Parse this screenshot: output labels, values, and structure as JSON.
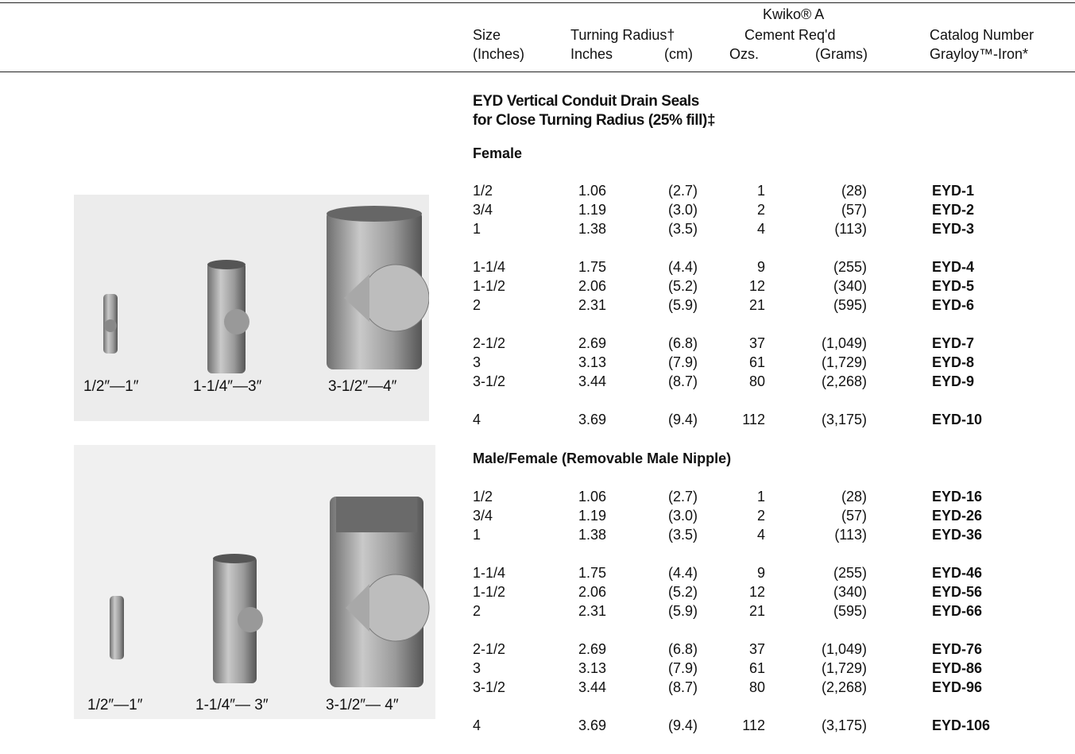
{
  "header": {
    "kwiko": "Kwiko® A",
    "size": "Size",
    "size_unit": "(Inches)",
    "turning_radius": "Turning Radius†",
    "turning_inches": "Inches",
    "turning_cm": "(cm)",
    "cement": "Cement Req'd",
    "cement_ozs": "Ozs.",
    "cement_grams": "(Grams)",
    "catalog": "Catalog Number",
    "catalog_material": "Grayloy™-Iron*"
  },
  "sections": [
    {
      "title": [
        "EYD Vertical Conduit Drain Seals",
        "for Close Turning Radius (25% fill)‡"
      ],
      "subtitle": "Female",
      "groups": [
        [
          [
            "1/2",
            "1.06",
            "(2.7)",
            "1",
            "(28)",
            "EYD-1"
          ],
          [
            "3/4",
            "1.19",
            "(3.0)",
            "2",
            "(57)",
            "EYD-2"
          ],
          [
            "1",
            "1.38",
            "(3.5)",
            "4",
            "(113)",
            "EYD-3"
          ]
        ],
        [
          [
            "1-1/4",
            "1.75",
            "(4.4)",
            "9",
            "(255)",
            "EYD-4"
          ],
          [
            "1-1/2",
            "2.06",
            "(5.2)",
            "12",
            "(340)",
            "EYD-5"
          ],
          [
            "2",
            "2.31",
            "(5.9)",
            "21",
            "(595)",
            "EYD-6"
          ]
        ],
        [
          [
            "2-1/2",
            "2.69",
            "(6.8)",
            "37",
            "(1,049)",
            "EYD-7"
          ],
          [
            "3",
            "3.13",
            "(7.9)",
            "61",
            "(1,729)",
            "EYD-8"
          ],
          [
            "3-1/2",
            "3.44",
            "(8.7)",
            "80",
            "(2,268)",
            "EYD-9"
          ]
        ],
        [
          [
            "4",
            "3.69",
            "(9.4)",
            "112",
            "(3,175)",
            "EYD-10"
          ]
        ]
      ]
    },
    {
      "subtitle": "Male/Female (Removable Male Nipple)",
      "groups": [
        [
          [
            "1/2",
            "1.06",
            "(2.7)",
            "1",
            "(28)",
            "EYD-16"
          ],
          [
            "3/4",
            "1.19",
            "(3.0)",
            "2",
            "(57)",
            "EYD-26"
          ],
          [
            "1",
            "1.38",
            "(3.5)",
            "4",
            "(113)",
            "EYD-36"
          ]
        ],
        [
          [
            "1-1/4",
            "1.75",
            "(4.4)",
            "9",
            "(255)",
            "EYD-46"
          ],
          [
            "1-1/2",
            "2.06",
            "(5.2)",
            "12",
            "(340)",
            "EYD-56"
          ],
          [
            "2",
            "2.31",
            "(5.9)",
            "21",
            "(595)",
            "EYD-66"
          ]
        ],
        [
          [
            "2-1/2",
            "2.69",
            "(6.8)",
            "37",
            "(1,049)",
            "EYD-76"
          ],
          [
            "3",
            "3.13",
            "(7.9)",
            "61",
            "(1,729)",
            "EYD-86"
          ],
          [
            "3-1/2",
            "3.44",
            "(8.7)",
            "80",
            "(2,268)",
            "EYD-96"
          ]
        ],
        [
          [
            "4",
            "3.69",
            "(9.4)",
            "112",
            "(3,175)",
            "EYD-106"
          ]
        ]
      ]
    }
  ],
  "photos": [
    {
      "captions": [
        "1/2″—1″",
        "1-1/4″—3″",
        "3-1/2″—4″"
      ]
    },
    {
      "captions": [
        "1/2″—1″",
        "1-1/4″— 3″",
        "3-1/2″— 4″"
      ]
    }
  ]
}
